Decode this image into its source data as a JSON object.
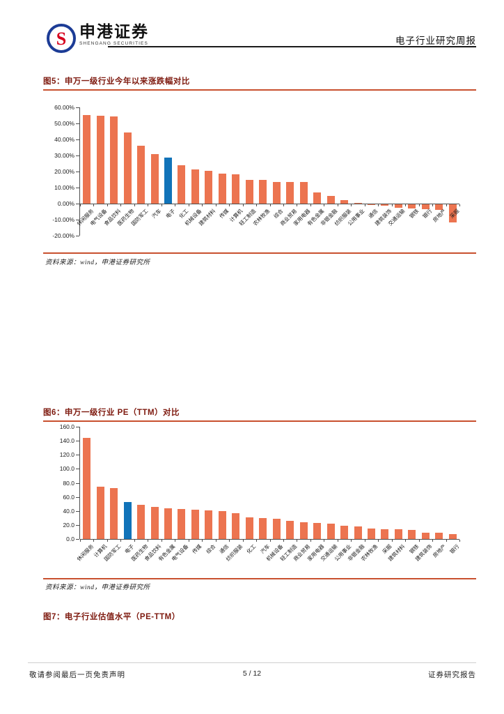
{
  "header": {
    "logo_cn": "申港证券",
    "logo_en": "SHENGANG SECURITIES",
    "logo_letter": "S",
    "report_type": "电子行业研究周报"
  },
  "figure5": {
    "title": "图5：申万一级行业今年以来涨跌幅对比",
    "source": "资料来源：wind，申港证券研究所"
  },
  "figure6": {
    "title": "图6：申万一级行业 PE（TTM）对比",
    "source": "资料来源：wind，申港证券研究所"
  },
  "figure7": {
    "title": "图7：电子行业估值水平（PE-TTM）"
  },
  "footer": {
    "left": "敬请参阅最后一页免责声明",
    "center": "5 / 12",
    "right": "证券研究报告"
  },
  "colors": {
    "bar_orange": "#EC7450",
    "bar_blue": "#1173B9",
    "title_maroon": "#7E1A0F",
    "rule_orange": "#C8502E",
    "logo_blue": "#1C3C96",
    "logo_red": "#D6001C"
  },
  "chart_data": [
    {
      "type": "bar",
      "title": "申万一级行业今年以来涨跌幅对比",
      "ylabel": "涨跌幅",
      "ylim": [
        -20,
        60
      ],
      "ytick_step": 10,
      "ytick_format": "percent2",
      "grid": false,
      "legend": "none",
      "highlight_category": "电子",
      "categories": [
        "休闲服务",
        "电气设备",
        "食品饮料",
        "医药生物",
        "国防军工",
        "汽车",
        "电子",
        "化工",
        "机械设备",
        "建筑材料",
        "传媒",
        "计算机",
        "轻工制造",
        "农林牧渔",
        "综合",
        "商业贸易",
        "家用电器",
        "有色金属",
        "非银金融",
        "纺织服装",
        "公用事业",
        "通信",
        "建筑装饰",
        "交通运输",
        "钢铁",
        "银行",
        "房地产",
        "采掘"
      ],
      "values": [
        55.3,
        54.8,
        54.2,
        44.5,
        36.0,
        31.0,
        28.5,
        23.8,
        21.4,
        20.6,
        18.7,
        18.4,
        15.0,
        14.6,
        13.6,
        13.6,
        13.6,
        7.0,
        4.8,
        2.3,
        0.6,
        -0.3,
        -1.0,
        -2.0,
        -2.8,
        -3.0,
        -3.5,
        -11.5
      ]
    },
    {
      "type": "bar",
      "title": "申万一级行业PE（TTM）对比",
      "ylabel": "PE (TTM)",
      "ylim": [
        0,
        160
      ],
      "ytick_step": 20,
      "ytick_format": "fixed1",
      "grid": false,
      "legend": "none",
      "highlight_category": "电子",
      "categories": [
        "休闲服务",
        "计算机",
        "国防军工",
        "电子",
        "医药生物",
        "食品饮料",
        "有色金属",
        "电气设备",
        "传媒",
        "综合",
        "通信",
        "纺织服装",
        "化工",
        "汽车",
        "机械设备",
        "轻工制造",
        "商业贸易",
        "家用电器",
        "交通运输",
        "公用事业",
        "非银金融",
        "农林牧渔",
        "采掘",
        "建筑材料",
        "钢铁",
        "建筑装饰",
        "房地产",
        "银行"
      ],
      "values": [
        144,
        75,
        73,
        52.5,
        49,
        46,
        44,
        43,
        41.5,
        41,
        40,
        36.5,
        31,
        30,
        29,
        25.5,
        23.5,
        22.5,
        21.8,
        19.2,
        17.5,
        15.2,
        14,
        13.5,
        13.2,
        9,
        8.5,
        6.5
      ]
    }
  ]
}
